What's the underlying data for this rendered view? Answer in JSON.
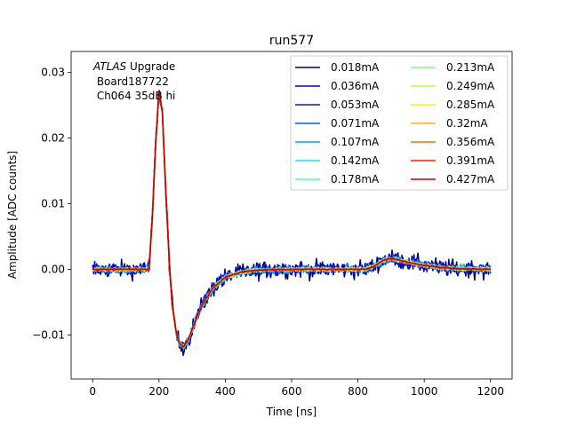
{
  "chart_data": {
    "type": "line",
    "title": "run577",
    "xlabel": "Time [ns]",
    "ylabel": "Amplitude [ADC counts]",
    "xlim": [
      -65,
      1265
    ],
    "ylim": [
      -0.0167,
      0.0332
    ],
    "xticks": [
      0,
      200,
      400,
      600,
      800,
      1000,
      1200
    ],
    "xtick_labels": [
      "0",
      "200",
      "400",
      "600",
      "800",
      "1000",
      "1200"
    ],
    "yticks": [
      -0.01,
      0.0,
      0.01,
      0.02,
      0.03
    ],
    "ytick_labels": [
      "−0.01",
      "0.00",
      "0.01",
      "0.02",
      "0.03"
    ],
    "grid": false,
    "legend_position": "top-right",
    "legend_columns": 2,
    "annotation": {
      "line1_italic": "ATLAS",
      "line1_rest": " Upgrade",
      "line2": " Board187722",
      "line3": " Ch064 35dB hi"
    },
    "shape_keypoints": {
      "t": [
        0,
        170,
        180,
        190,
        200,
        210,
        220,
        230,
        240,
        250,
        260,
        275,
        290,
        310,
        330,
        360,
        400,
        450,
        500,
        600,
        700,
        820,
        850,
        870,
        890,
        910,
        950,
        1000,
        1050,
        1100,
        1200
      ],
      "v": [
        0.0,
        0.0,
        0.008,
        0.019,
        0.0275,
        0.024,
        0.0125,
        0.002,
        -0.0055,
        -0.009,
        -0.0112,
        -0.0118,
        -0.0105,
        -0.0078,
        -0.0055,
        -0.003,
        -0.0012,
        -0.0004,
        -0.0001,
        0.0,
        0.0,
        0.0,
        0.0005,
        0.0012,
        0.0016,
        0.0016,
        0.0011,
        0.0006,
        0.0003,
        0.0001,
        0.0
      ]
    },
    "series": [
      {
        "name": "0.018mA",
        "color": "#00007f",
        "noise": 0.0013
      },
      {
        "name": "0.036mA",
        "color": "#0000c8",
        "noise": 0.0009
      },
      {
        "name": "0.053mA",
        "color": "#0010ff",
        "noise": 0.0007
      },
      {
        "name": "0.071mA",
        "color": "#0058ff",
        "noise": 0.0006
      },
      {
        "name": "0.107mA",
        "color": "#00a4ff",
        "noise": 0.0005
      },
      {
        "name": "0.142mA",
        "color": "#16e0ee",
        "noise": 0.0004
      },
      {
        "name": "0.178mA",
        "color": "#4dffaa",
        "noise": 0.00035
      },
      {
        "name": "0.213mA",
        "color": "#7dff7a",
        "noise": 0.0003
      },
      {
        "name": "0.249mA",
        "color": "#baff3c",
        "noise": 0.00025
      },
      {
        "name": "0.285mA",
        "color": "#f4f802",
        "noise": 0.0002
      },
      {
        "name": "0.32mA",
        "color": "#ffb100",
        "noise": 0.00018
      },
      {
        "name": "0.356mA",
        "color": "#ff6c00",
        "noise": 0.00015
      },
      {
        "name": "0.391mA",
        "color": "#ff2200",
        "noise": 0.00012
      },
      {
        "name": "0.427mA",
        "color": "#c80000",
        "noise": 0.0001
      }
    ]
  }
}
